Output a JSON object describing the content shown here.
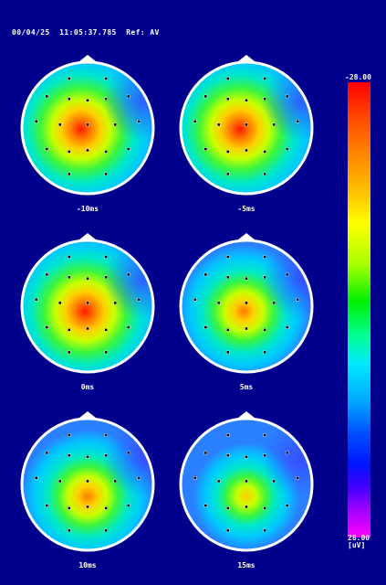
{
  "header": {
    "date": "00/04/25",
    "time": "11:05:37.785",
    "reference": "Ref: AV"
  },
  "maps": [
    {
      "label": "-10ms",
      "peak_intensity": 0.95,
      "peak_position": "center-left",
      "right_edge": "cool"
    },
    {
      "label": "-5ms",
      "peak_intensity": 1.0,
      "peak_position": "center-left",
      "right_edge": "cool"
    },
    {
      "label": "0ms",
      "peak_intensity": 0.9,
      "peak_position": "center",
      "right_edge": "cool"
    },
    {
      "label": "5ms",
      "peak_intensity": 0.8,
      "peak_position": "center",
      "right_edge": "cool"
    },
    {
      "label": "10ms",
      "peak_intensity": 0.65,
      "peak_position": "center-bottom",
      "right_edge": "cool"
    },
    {
      "label": "15ms",
      "peak_intensity": 0.5,
      "peak_position": "center-bottom",
      "right_edge": "cool"
    }
  ],
  "colorbar": {
    "max_label": "-28.00",
    "min_label": "28.00",
    "unit_label": "[uV]"
  },
  "colors": {
    "background": "#00008c",
    "head_outline": "#ffffff",
    "electrode": "#000000"
  }
}
